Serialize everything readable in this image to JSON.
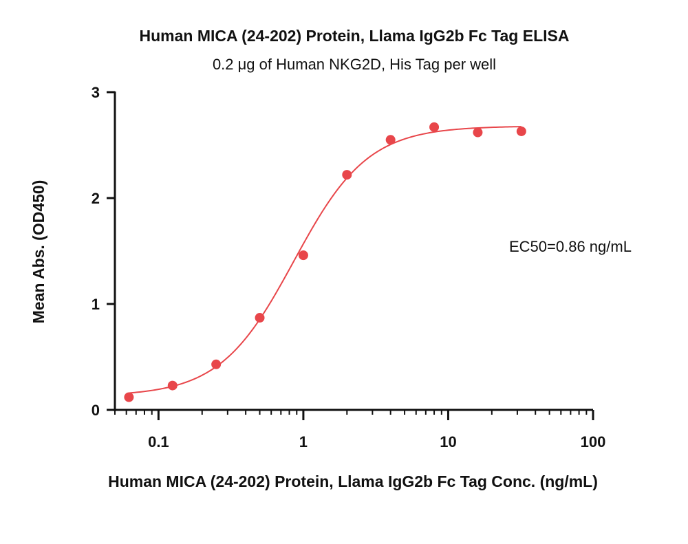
{
  "chart_data": {
    "type": "scatter",
    "title": "Human MICA (24-202) Protein, Llama IgG2b Fc Tag ELISA",
    "subtitle": "0.2 μg of Human NKG2D, His Tag per well",
    "xlabel": "Human MICA (24-202) Protein, Llama IgG2b Fc Tag Conc. (ng/mL)",
    "ylabel": "Mean Abs. (OD450)",
    "x_scale": "log",
    "xlim": [
      0.05,
      100
    ],
    "ylim": [
      0,
      3
    ],
    "x_ticks": [
      0.1,
      1,
      10,
      100
    ],
    "x_tick_labels": [
      "0.1",
      "1",
      "10",
      "100"
    ],
    "y_ticks": [
      0,
      1,
      2,
      3
    ],
    "y_tick_labels": [
      "0",
      "1",
      "2",
      "3"
    ],
    "grid": false,
    "series": [
      {
        "color": "#e8464a",
        "x": [
          0.0625,
          0.125,
          0.25,
          0.5,
          1,
          2,
          4,
          8,
          16,
          32
        ],
        "y": [
          0.12,
          0.23,
          0.43,
          0.87,
          1.46,
          2.22,
          2.55,
          2.67,
          2.62,
          2.63
        ]
      }
    ],
    "fit": {
      "model": "4PL",
      "bottom": 0.13,
      "top": 2.68,
      "ec50": 0.86,
      "hill": 1.7,
      "color": "#e8464a"
    },
    "annotation": "EC50=0.86 ng/mL"
  }
}
